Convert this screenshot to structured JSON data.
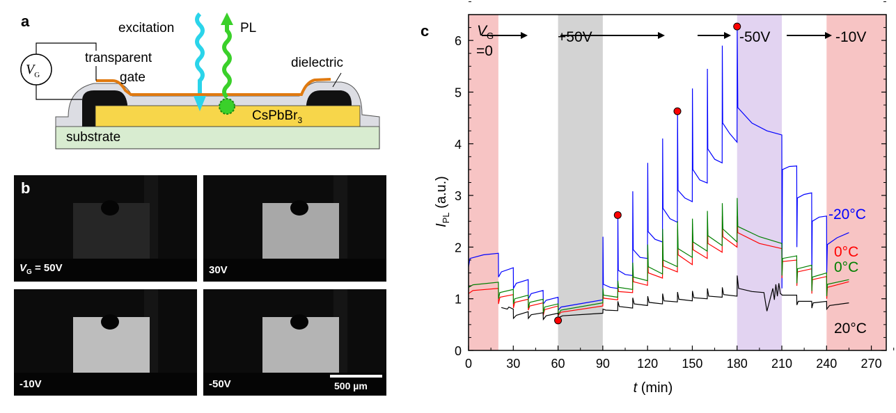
{
  "panels": {
    "a": {
      "letter": "a",
      "excitation": "excitation",
      "pl": "PL",
      "vg_symbol": "V",
      "vg_sub": "G",
      "transparent": "transparent",
      "gate": "gate",
      "dielectric": "dielectric",
      "material": "CsPbBr",
      "material_sub": "3",
      "substrate": "substrate"
    },
    "b": {
      "letter": "b",
      "images": [
        {
          "label_sym": "V",
          "label_sub": "G",
          "label": " = 50V",
          "brightness": "dim"
        },
        {
          "label": "30V",
          "brightness": "bright"
        },
        {
          "label": "-10V",
          "brightness": "bright"
        },
        {
          "label": "-50V",
          "brightness": "bright"
        }
      ],
      "scale_bar": "500 µm"
    },
    "c": {
      "letter": "c"
    }
  },
  "chart_data": {
    "type": "line",
    "xlabel_sym": "t",
    "xlabel": " (min)",
    "ylabel_sym": "I",
    "ylabel_sub": "PL",
    "ylabel": " (a.u.)",
    "xlim": [
      0,
      280
    ],
    "ylim": [
      0,
      6.5
    ],
    "xticks": [
      0,
      30,
      60,
      90,
      120,
      150,
      180,
      210,
      240,
      270
    ],
    "yticks": [
      0,
      1,
      2,
      3,
      4,
      5,
      6
    ],
    "grid": false,
    "regions": [
      {
        "from": 0,
        "to": 20,
        "color": "#f7c4c4"
      },
      {
        "from": 60,
        "to": 90,
        "color": "#d3d3d3"
      },
      {
        "from": 180,
        "to": 210,
        "color": "#e2d3f1"
      },
      {
        "from": 240,
        "to": 280,
        "color": "#f7c4c4"
      }
    ],
    "annotations": {
      "vg_sym": "V",
      "vg_sub": "G",
      "vg_zero": "=0",
      "plus50": "+50V",
      "minus50": "-50V",
      "minus10": "-10V"
    },
    "markers": {
      "color": "#ff0000",
      "points": [
        [
          60,
          0.58
        ],
        [
          100,
          2.62
        ],
        [
          140,
          4.63
        ],
        [
          180,
          6.27
        ]
      ]
    },
    "series": [
      {
        "name": "-20°C",
        "color": "#0000ff",
        "points": [
          [
            0,
            1.62
          ],
          [
            1,
            1.78
          ],
          [
            10,
            1.85
          ],
          [
            20,
            1.88
          ],
          [
            20.1,
            1.42
          ],
          [
            22,
            1.52
          ],
          [
            30,
            1.6
          ],
          [
            30.1,
            1.2
          ],
          [
            32,
            1.3
          ],
          [
            40,
            1.37
          ],
          [
            40.1,
            1.0
          ],
          [
            42,
            1.1
          ],
          [
            50,
            1.16
          ],
          [
            50.1,
            0.9
          ],
          [
            52,
            0.97
          ],
          [
            60,
            1.03
          ],
          [
            60.1,
            0.78
          ],
          [
            62,
            0.84
          ],
          [
            90,
            0.98
          ],
          [
            90.1,
            2.2
          ],
          [
            90.4,
            1.28
          ],
          [
            95,
            1.22
          ],
          [
            100,
            1.2
          ],
          [
            100.1,
            2.62
          ],
          [
            100.4,
            1.55
          ],
          [
            105,
            1.47
          ],
          [
            110,
            1.45
          ],
          [
            110.1,
            3.08
          ],
          [
            110.4,
            1.95
          ],
          [
            115,
            1.8
          ],
          [
            120,
            1.78
          ],
          [
            120.1,
            3.63
          ],
          [
            120.4,
            2.3
          ],
          [
            125,
            2.15
          ],
          [
            130,
            2.1
          ],
          [
            130.1,
            4.1
          ],
          [
            130.4,
            2.75
          ],
          [
            135,
            2.55
          ],
          [
            140,
            2.48
          ],
          [
            140.1,
            4.62
          ],
          [
            140.4,
            3.1
          ],
          [
            145,
            2.95
          ],
          [
            150,
            2.88
          ],
          [
            150.1,
            5.07
          ],
          [
            150.4,
            3.5
          ],
          [
            155,
            3.3
          ],
          [
            160,
            3.24
          ],
          [
            160.1,
            5.45
          ],
          [
            160.4,
            3.9
          ],
          [
            165,
            3.7
          ],
          [
            170,
            3.63
          ],
          [
            170.1,
            5.9
          ],
          [
            170.4,
            4.4
          ],
          [
            175,
            4.2
          ],
          [
            180,
            4.03
          ],
          [
            180.1,
            6.2
          ],
          [
            180.5,
            4.7
          ],
          [
            190,
            4.4
          ],
          [
            200,
            4.25
          ],
          [
            210,
            4.17
          ],
          [
            210.1,
            1.2
          ],
          [
            210.4,
            3.5
          ],
          [
            215,
            3.56
          ],
          [
            220,
            3.57
          ],
          [
            220.1,
            2.0
          ],
          [
            220.4,
            2.95
          ],
          [
            225,
            3.02
          ],
          [
            230,
            3.05
          ],
          [
            230.1,
            1.42
          ],
          [
            230.4,
            2.5
          ],
          [
            235,
            2.58
          ],
          [
            240,
            2.6
          ],
          [
            240.1,
            1.5
          ],
          [
            240.5,
            2.05
          ],
          [
            247,
            2.18
          ],
          [
            255,
            2.28
          ]
        ]
      },
      {
        "name": "0°C",
        "color": "#ff0000",
        "points": [
          [
            0,
            1.1
          ],
          [
            3,
            1.16
          ],
          [
            20,
            1.2
          ],
          [
            20.1,
            0.9
          ],
          [
            21,
            1.03
          ],
          [
            30,
            1.08
          ],
          [
            30.1,
            0.82
          ],
          [
            31,
            0.93
          ],
          [
            40,
            0.99
          ],
          [
            40.1,
            0.78
          ],
          [
            41,
            0.86
          ],
          [
            50,
            0.92
          ],
          [
            50.1,
            0.68
          ],
          [
            51,
            0.79
          ],
          [
            60,
            0.86
          ],
          [
            60.1,
            0.68
          ],
          [
            62,
            0.74
          ],
          [
            90,
            0.86
          ],
          [
            90.1,
            1.1
          ],
          [
            90.5,
            1.01
          ],
          [
            100,
            0.98
          ],
          [
            100.1,
            1.27
          ],
          [
            100.5,
            1.14
          ],
          [
            110,
            1.12
          ],
          [
            110.1,
            1.55
          ],
          [
            110.5,
            1.33
          ],
          [
            120,
            1.26
          ],
          [
            120.1,
            1.9
          ],
          [
            120.5,
            1.5
          ],
          [
            130,
            1.4
          ],
          [
            130.1,
            2.2
          ],
          [
            130.5,
            1.63
          ],
          [
            140,
            1.52
          ],
          [
            140.1,
            2.35
          ],
          [
            140.5,
            1.85
          ],
          [
            150,
            1.66
          ],
          [
            150.1,
            2.45
          ],
          [
            150.5,
            1.95
          ],
          [
            160,
            1.78
          ],
          [
            160.1,
            2.55
          ],
          [
            160.5,
            2.07
          ],
          [
            170,
            1.9
          ],
          [
            170.1,
            2.6
          ],
          [
            170.5,
            2.2
          ],
          [
            180,
            2.0
          ],
          [
            180.1,
            2.6
          ],
          [
            180.5,
            2.28
          ],
          [
            195,
            2.07
          ],
          [
            210,
            1.97
          ],
          [
            210.1,
            1.4
          ],
          [
            210.5,
            1.72
          ],
          [
            220,
            1.75
          ],
          [
            220.1,
            1.25
          ],
          [
            220.5,
            1.52
          ],
          [
            230,
            1.58
          ],
          [
            230.1,
            1.1
          ],
          [
            230.5,
            1.37
          ],
          [
            240,
            1.43
          ],
          [
            240.1,
            1.0
          ],
          [
            240.5,
            1.22
          ],
          [
            255,
            1.33
          ]
        ]
      },
      {
        "name": "0°C",
        "color": "#008000",
        "points": [
          [
            0,
            1.22
          ],
          [
            3,
            1.27
          ],
          [
            20,
            1.32
          ],
          [
            20.1,
            1.0
          ],
          [
            21,
            1.12
          ],
          [
            30,
            1.18
          ],
          [
            30.1,
            0.9
          ],
          [
            31,
            1.0
          ],
          [
            40,
            1.07
          ],
          [
            40.1,
            0.82
          ],
          [
            41,
            0.93
          ],
          [
            50,
            0.99
          ],
          [
            50.1,
            0.72
          ],
          [
            51,
            0.84
          ],
          [
            60,
            0.9
          ],
          [
            60.1,
            0.7
          ],
          [
            62,
            0.78
          ],
          [
            90,
            0.92
          ],
          [
            90.1,
            1.2
          ],
          [
            90.5,
            1.07
          ],
          [
            100,
            1.03
          ],
          [
            100.1,
            1.35
          ],
          [
            100.5,
            1.22
          ],
          [
            110,
            1.18
          ],
          [
            110.1,
            1.7
          ],
          [
            110.5,
            1.42
          ],
          [
            120,
            1.35
          ],
          [
            120.1,
            2.05
          ],
          [
            120.5,
            1.62
          ],
          [
            130,
            1.48
          ],
          [
            130.1,
            2.35
          ],
          [
            130.5,
            1.75
          ],
          [
            140,
            1.62
          ],
          [
            140.1,
            2.5
          ],
          [
            140.5,
            1.97
          ],
          [
            150,
            1.8
          ],
          [
            150.1,
            2.55
          ],
          [
            150.5,
            2.1
          ],
          [
            160,
            1.92
          ],
          [
            160.1,
            2.7
          ],
          [
            160.5,
            2.22
          ],
          [
            170,
            2.03
          ],
          [
            170.1,
            2.85
          ],
          [
            170.5,
            2.35
          ],
          [
            180,
            2.1
          ],
          [
            180.1,
            2.95
          ],
          [
            180.5,
            2.4
          ],
          [
            195,
            2.2
          ],
          [
            210,
            2.07
          ],
          [
            210.1,
            1.45
          ],
          [
            210.5,
            1.78
          ],
          [
            220,
            1.83
          ],
          [
            220.1,
            1.3
          ],
          [
            220.5,
            1.58
          ],
          [
            230,
            1.65
          ],
          [
            230.1,
            1.15
          ],
          [
            230.5,
            1.42
          ],
          [
            240,
            1.5
          ],
          [
            240.1,
            1.05
          ],
          [
            240.5,
            1.28
          ],
          [
            255,
            1.37
          ]
        ]
      },
      {
        "name": "20°C",
        "color": "#000000",
        "points": [
          [
            22,
            0.83
          ],
          [
            26,
            0.8
          ],
          [
            27,
            0.84
          ],
          [
            30,
            0.8
          ],
          [
            30.1,
            0.62
          ],
          [
            32,
            0.68
          ],
          [
            40,
            0.75
          ],
          [
            40.1,
            0.62
          ],
          [
            42,
            0.69
          ],
          [
            50,
            0.73
          ],
          [
            50.1,
            0.6
          ],
          [
            52,
            0.67
          ],
          [
            60,
            0.72
          ],
          [
            60.1,
            0.63
          ],
          [
            63,
            0.67
          ],
          [
            90,
            0.72
          ],
          [
            90.1,
            0.8
          ],
          [
            92,
            0.78
          ],
          [
            100,
            0.77
          ],
          [
            100.1,
            0.95
          ],
          [
            101,
            0.85
          ],
          [
            110,
            0.82
          ],
          [
            110.1,
            1.02
          ],
          [
            111,
            0.9
          ],
          [
            120,
            0.87
          ],
          [
            120.1,
            1.05
          ],
          [
            121,
            0.93
          ],
          [
            130,
            0.9
          ],
          [
            130.1,
            1.1
          ],
          [
            131,
            0.96
          ],
          [
            140,
            0.94
          ],
          [
            140.1,
            1.13
          ],
          [
            141,
            0.99
          ],
          [
            150,
            0.96
          ],
          [
            150.1,
            1.15
          ],
          [
            151,
            1.02
          ],
          [
            160,
            1.0
          ],
          [
            160.1,
            1.2
          ],
          [
            161,
            1.05
          ],
          [
            170,
            1.03
          ],
          [
            170.1,
            1.22
          ],
          [
            171,
            1.08
          ],
          [
            180,
            1.05
          ],
          [
            180.1,
            1.45
          ],
          [
            181,
            1.2
          ],
          [
            190,
            1.14
          ],
          [
            198,
            1.12
          ],
          [
            200,
            0.76
          ],
          [
            202,
            0.98
          ],
          [
            204,
            1.2
          ],
          [
            205,
            0.98
          ],
          [
            206,
            1.28
          ],
          [
            207,
            1.05
          ],
          [
            208,
            1.3
          ],
          [
            209,
            1.1
          ],
          [
            210,
            1.08
          ],
          [
            210.1,
            1.07
          ],
          [
            220,
            1.07
          ],
          [
            220.1,
            0.88
          ],
          [
            221,
            0.95
          ],
          [
            230,
            0.95
          ],
          [
            230.1,
            0.82
          ],
          [
            231,
            0.92
          ],
          [
            240,
            0.95
          ],
          [
            240.1,
            0.8
          ],
          [
            242,
            0.87
          ],
          [
            255,
            0.92
          ]
        ]
      }
    ]
  }
}
